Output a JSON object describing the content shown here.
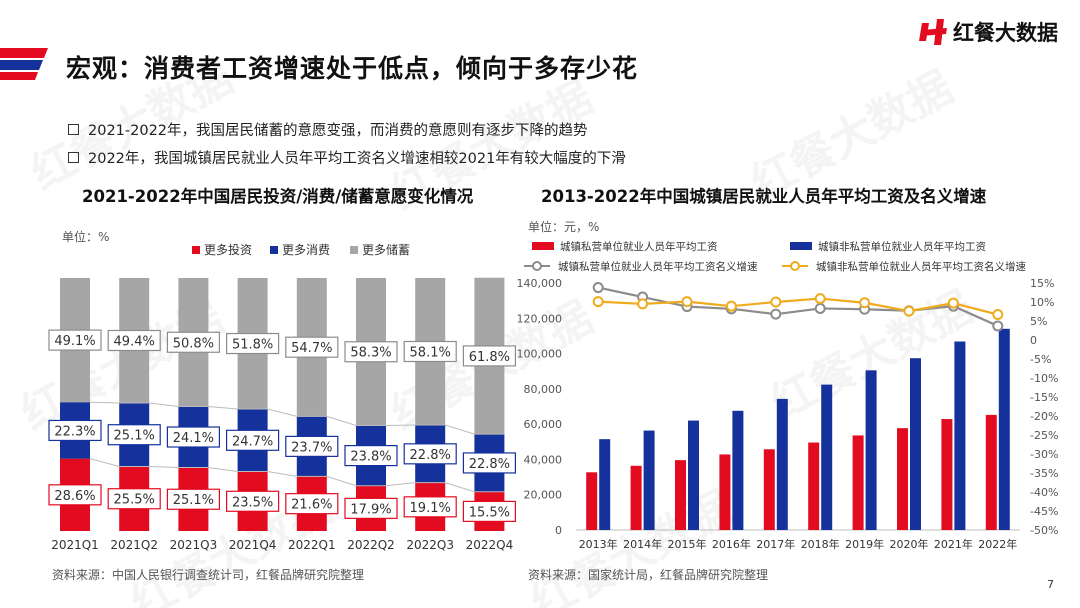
{
  "header": {
    "title": "宏观：消费者工资增速处于低点，倾向于多存少花",
    "logo_text": "红餐大数据",
    "page_number": "7"
  },
  "bullets": [
    "2021-2022年，我国居民储蓄的意愿变强，而消费的意愿则有逐步下降的趋势",
    "2022年，我国城镇居民就业人员年平均工资名义增速相较2021年有较大幅度的下滑"
  ],
  "watermark_text": "红餐大数据",
  "colors": {
    "red": "#e30b20",
    "blue": "#14319c",
    "gray": "#a6a6a6",
    "line_gray": "#8c8c8c",
    "line_yellow": "#efaa1e"
  },
  "chart_data": [
    {
      "type": "bar",
      "stacked": true,
      "title": "2021-2022年中国居民投资/消费/储蓄意愿变化情况",
      "unit": "单位：%",
      "categories": [
        "2021Q1",
        "2021Q2",
        "2021Q3",
        "2021Q4",
        "2022Q1",
        "2022Q2",
        "2022Q3",
        "2022Q4"
      ],
      "series": [
        {
          "name": "更多投资",
          "color": "#e30b20",
          "values": [
            28.6,
            25.5,
            25.1,
            23.5,
            21.6,
            17.9,
            19.1,
            15.5
          ],
          "labels": [
            "28.6%",
            "25.5%",
            "25.1%",
            "23.5%",
            "21.6%",
            "17.9%",
            "19.1%",
            "15.5%"
          ]
        },
        {
          "name": "更多消费",
          "color": "#14319c",
          "values": [
            22.3,
            25.1,
            24.1,
            24.7,
            23.7,
            23.8,
            22.8,
            22.8
          ],
          "labels": [
            "22.3%",
            "25.1%",
            "24.1%",
            "24.7%",
            "23.7%",
            "23.8%",
            "22.8%",
            "22.8%"
          ]
        },
        {
          "name": "更多储蓄",
          "color": "#a6a6a6",
          "values": [
            49.1,
            49.4,
            50.8,
            51.8,
            54.7,
            58.3,
            58.1,
            61.8
          ],
          "labels": [
            "49.1%",
            "49.4%",
            "50.8%",
            "51.8%",
            "54.7%",
            "58.3%",
            "58.1%",
            "61.8%"
          ]
        }
      ],
      "legend_position": "top",
      "source": "资料来源：中国人民银行调查统计司，红餐品牌研究院整理"
    },
    {
      "type": "bar+line",
      "title": "2013-2022年中国城镇居民就业人员年平均工资及名义增速",
      "unit": "单位：元，%",
      "categories": [
        "2013年",
        "2014年",
        "2015年",
        "2016年",
        "2017年",
        "2018年",
        "2019年",
        "2020年",
        "2021年",
        "2022年"
      ],
      "bar_series": [
        {
          "name": "城镇私营单位就业人员年平均工资",
          "color": "#e30b20",
          "values": [
            32706,
            36390,
            39589,
            42833,
            45761,
            49575,
            53604,
            57727,
            62884,
            65237
          ]
        },
        {
          "name": "城镇非私营单位就业人员年平均工资",
          "color": "#14319c",
          "values": [
            51483,
            56360,
            62029,
            67569,
            74318,
            82413,
            90501,
            97379,
            106837,
            114029
          ]
        }
      ],
      "line_series": [
        {
          "name": "城镇私营单位就业人员年平均工资名义增速",
          "color": "#8c8c8c",
          "values": [
            13.8,
            11.3,
            8.8,
            8.2,
            6.8,
            8.3,
            8.1,
            7.7,
            8.9,
            3.7
          ]
        },
        {
          "name": "城镇非私营单位就业人员年平均工资名义增速",
          "color": "#efaa1e",
          "values": [
            10.1,
            9.5,
            10.1,
            8.9,
            10.0,
            10.9,
            9.8,
            7.6,
            9.7,
            6.7
          ]
        }
      ],
      "y_left": {
        "min": 0,
        "max": 140000,
        "step": 20000,
        "ticks": [
          "0",
          "20,000",
          "40,000",
          "60,000",
          "80,000",
          "100,000",
          "120,000",
          "140,000"
        ]
      },
      "y_right": {
        "min": -50,
        "max": 15,
        "step": 5,
        "ticks": [
          "-50%",
          "-45%",
          "-40%",
          "-35%",
          "-30%",
          "-25%",
          "-20%",
          "-15%",
          "-10%",
          "-5%",
          "0",
          "5%",
          "10%",
          "15%"
        ]
      },
      "legend_position": "top",
      "source": "资料来源：国家统计局，红餐品牌研究院整理"
    }
  ]
}
